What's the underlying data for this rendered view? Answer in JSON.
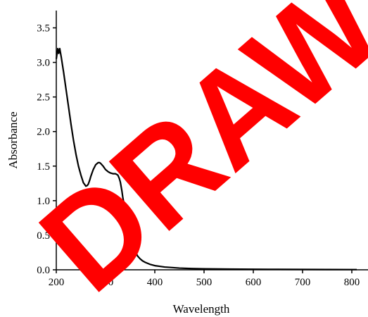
{
  "chart_data": {
    "type": "line",
    "xlabel": "Wavelength",
    "ylabel": "Absorbance",
    "xlim": [
      200,
      800
    ],
    "ylim": [
      0,
      3.75
    ],
    "x_ticks": [
      200,
      300,
      400,
      500,
      600,
      700,
      800
    ],
    "x_tick_labels": [
      "200",
      "300",
      "400",
      "500",
      "600",
      "700",
      "800"
    ],
    "y_ticks": [
      0,
      0.5,
      1.0,
      1.5,
      2.0,
      2.5,
      3.0,
      3.5
    ],
    "y_tick_labels": [
      "0.0",
      "0.5",
      "1.0",
      "1.5",
      "2.0",
      "2.5",
      "3.0",
      "3.5"
    ],
    "grid": false,
    "series": [
      {
        "color": "#000000",
        "x": [
          200,
          203,
          205,
          207,
          210,
          215,
          220,
          225,
          230,
          235,
          240,
          245,
          250,
          255,
          260,
          263,
          265,
          268,
          270,
          275,
          280,
          285,
          288,
          290,
          295,
          300,
          305,
          310,
          315,
          320,
          325,
          328,
          330,
          333,
          335,
          340,
          345,
          350,
          355,
          360,
          365,
          370,
          375,
          380,
          390,
          400,
          410,
          420,
          430,
          440,
          450,
          475,
          500,
          550,
          600,
          650,
          700,
          750,
          800,
          810
        ],
        "y": [
          3.05,
          3.2,
          3.13,
          3.2,
          3.08,
          2.85,
          2.6,
          2.35,
          2.1,
          1.87,
          1.67,
          1.5,
          1.37,
          1.26,
          1.21,
          1.22,
          1.24,
          1.3,
          1.35,
          1.45,
          1.52,
          1.55,
          1.55,
          1.54,
          1.5,
          1.45,
          1.42,
          1.4,
          1.39,
          1.39,
          1.37,
          1.32,
          1.27,
          1.15,
          1.05,
          0.85,
          0.67,
          0.5,
          0.36,
          0.27,
          0.2,
          0.16,
          0.13,
          0.11,
          0.08,
          0.06,
          0.05,
          0.04,
          0.035,
          0.03,
          0.025,
          0.018,
          0.014,
          0.01,
          0.008,
          0.006,
          0.005,
          0.004,
          0.003,
          0.003
        ]
      }
    ]
  },
  "watermark": {
    "text": "DRAW",
    "color": "#ff0000"
  }
}
